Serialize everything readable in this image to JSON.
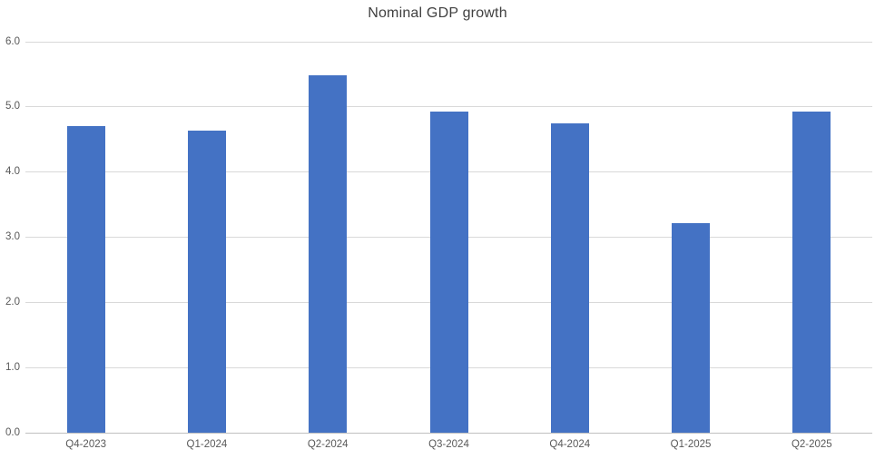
{
  "title": "Nominal GDP growth",
  "colors": {
    "background": "#FFFFFF",
    "bar": "#4472C4",
    "gridline": "#D9D9D9",
    "axis_line": "#BFBFBF",
    "title_text": "#404040",
    "tick_text": "#595959"
  },
  "chart_data": {
    "type": "bar",
    "title": "Nominal GDP growth",
    "categories": [
      "Q4-2023",
      "Q1-2024",
      "Q2-2024",
      "Q3-2024",
      "Q4-2024",
      "Q1-2025",
      "Q2-2025"
    ],
    "values": [
      4.71,
      4.63,
      5.48,
      4.93,
      4.75,
      3.21,
      4.93
    ],
    "xlabel": "",
    "ylabel": "",
    "ylim": [
      0,
      6
    ],
    "ytick_values": [
      0,
      1,
      2,
      3,
      4,
      5,
      6
    ],
    "ytick_labels": [
      "0.0",
      "1.0",
      "2.0",
      "3.0",
      "4.0",
      "5.0",
      "6.0"
    ],
    "grid": true,
    "legend": false,
    "bar_color": "#4472C4"
  }
}
